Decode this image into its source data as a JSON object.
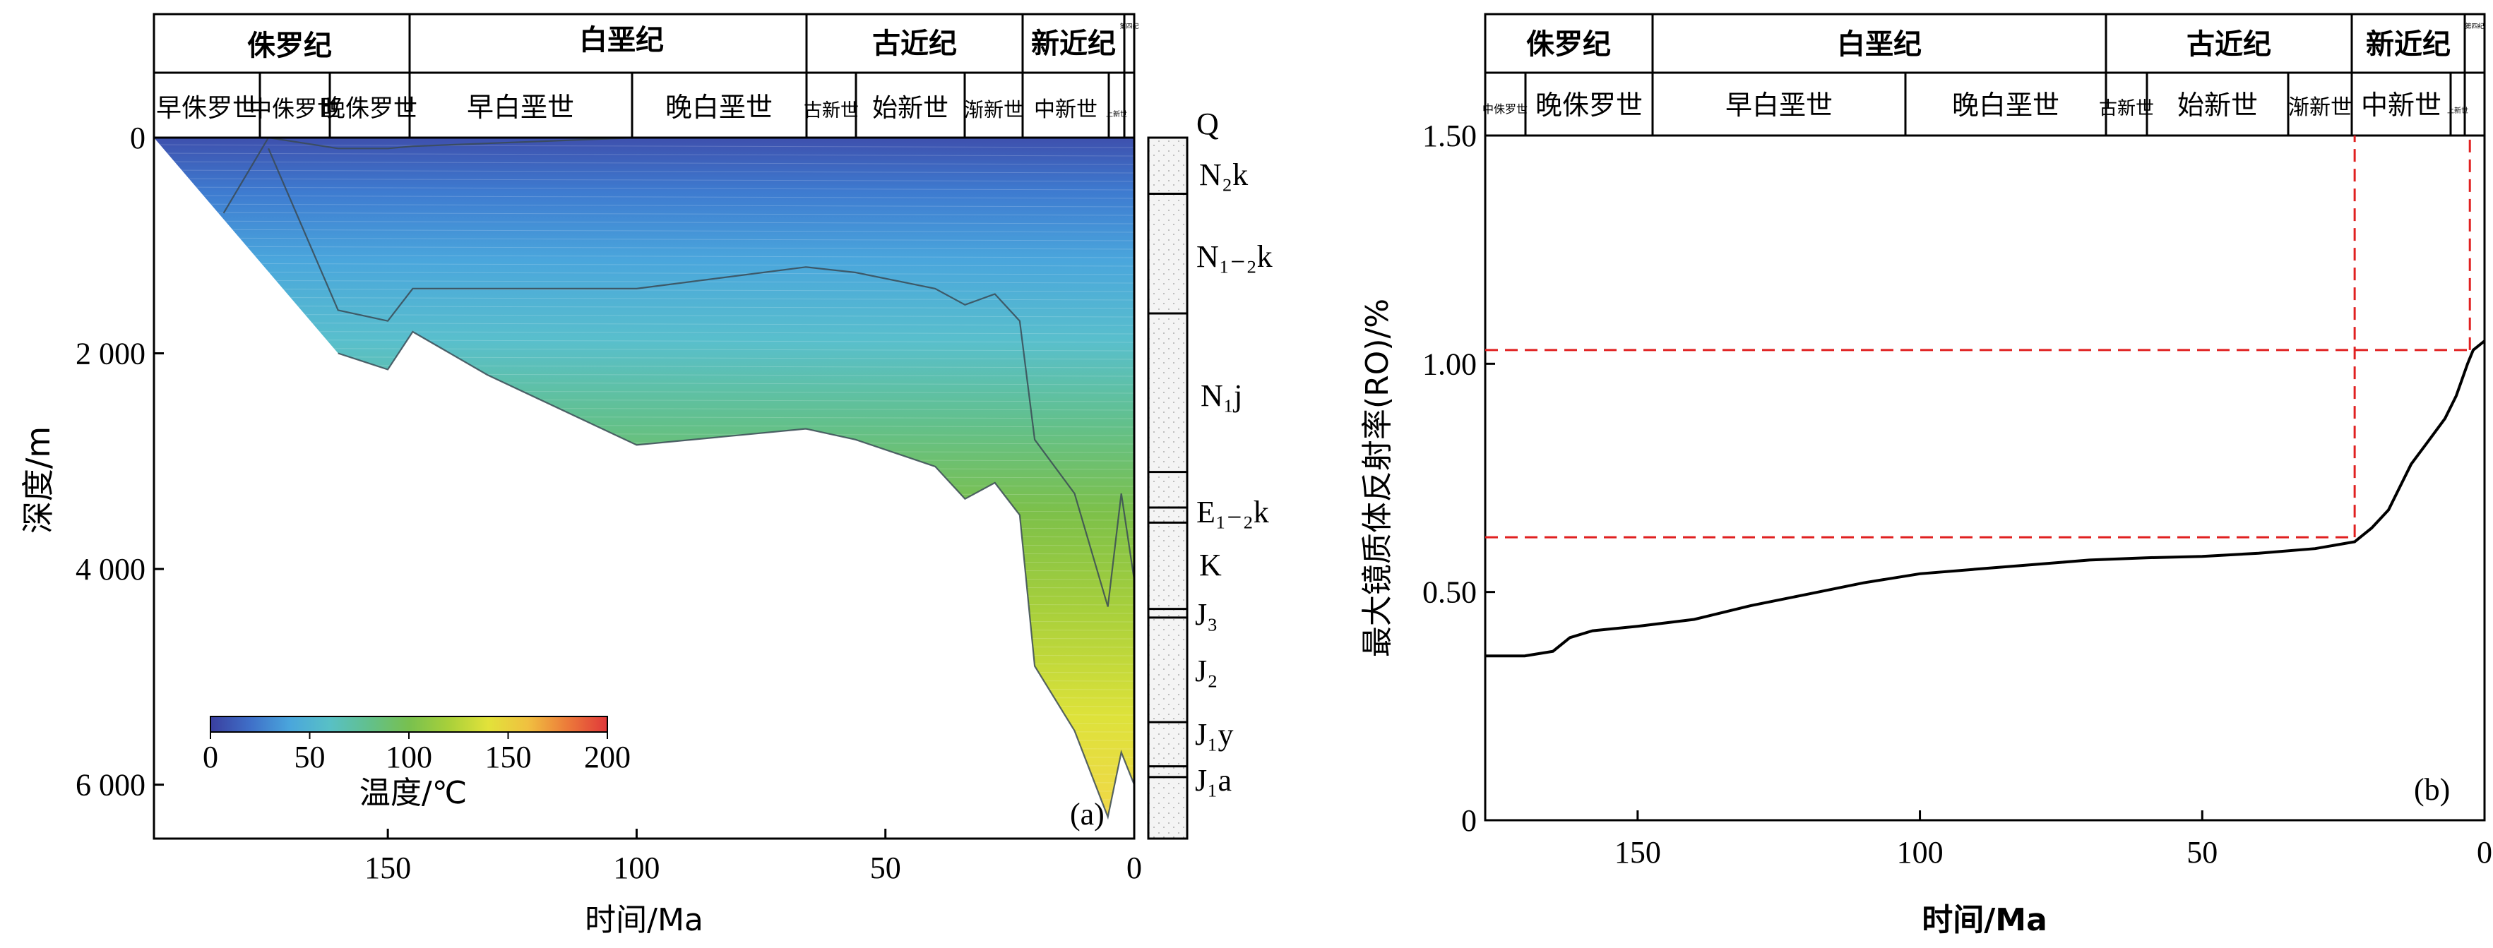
{
  "chart_data": [
    {
      "type": "area",
      "panel_label": "(a)",
      "xlabel": "时间/Ma",
      "ylabel": "深度/m",
      "xlim": [
        197,
        0
      ],
      "ylim": [
        0,
        6500
      ],
      "xticks": [
        "150",
        "100",
        "50",
        "0"
      ],
      "yticks": [
        "0",
        "2 000",
        "4 000",
        "6 000"
      ],
      "stratigraphy": {
        "periods": [
          "侏罗纪",
          "白垩纪",
          "古近纪",
          "新近纪",
          "第四纪"
        ],
        "epochs": [
          "早侏罗世",
          "中侏罗世",
          "晚侏罗世",
          "早白垩世",
          "晚白垩世",
          "古新世",
          "始新世",
          "渐新世",
          "中新世",
          "上新世"
        ]
      },
      "colorbar": {
        "title": "温度/℃",
        "ticks": [
          "0",
          "50",
          "100",
          "150",
          "200"
        ],
        "range": [
          0,
          200
        ],
        "colors": [
          "#3a3f9f",
          "#3f6fc8",
          "#4aa6dc",
          "#58c0c6",
          "#62c08c",
          "#78c04f",
          "#a8d03a",
          "#e2e23a",
          "#f0c040",
          "#ec7a3a",
          "#e0383a"
        ]
      },
      "formations": [
        "Q",
        "N₂k",
        "N₁₋₂k",
        "N₁j",
        "E₁₋₂k",
        "K",
        "J₃",
        "J₂",
        "J₁y",
        "J₁a"
      ],
      "formation_boundaries_m": [
        0,
        520,
        1630,
        3100,
        3430,
        3570,
        4370,
        4450,
        5420,
        5830,
        5930,
        6500
      ],
      "series": [
        {
          "x": [
            197,
            183,
            174,
            160,
            150,
            145,
            100,
            66,
            56,
            40,
            34,
            28,
            23,
            20,
            12,
            5.3,
            2.6,
            0
          ],
          "values": [
            0,
            0,
            0,
            0,
            0,
            0,
            0,
            0,
            0,
            0,
            0,
            0,
            0,
            0,
            0,
            0,
            0,
            0
          ]
        },
        {
          "x": [
            197,
            183,
            174,
            160,
            150,
            145,
            100,
            66,
            56,
            40,
            34,
            28,
            23,
            20,
            12,
            5.3,
            2.6,
            0
          ],
          "values": [
            null,
            700,
            0,
            100,
            100,
            80,
            0,
            0,
            0,
            0,
            0,
            0,
            0,
            0,
            0,
            0,
            0,
            0
          ]
        },
        {
          "x": [
            174,
            160,
            150,
            145,
            100,
            66,
            56,
            40,
            34,
            28,
            23,
            20,
            12,
            5.3,
            2.6,
            0
          ],
          "values": [
            100,
            1600,
            1700,
            1400,
            1400,
            1200,
            1250,
            1400,
            1550,
            1450,
            1700,
            2800,
            3300,
            4350,
            3300,
            4100
          ]
        },
        {
          "x": [
            160,
            150,
            145,
            130,
            100,
            66,
            56,
            40,
            34,
            28,
            23,
            20,
            12,
            5.3,
            2.6,
            0
          ],
          "values": [
            2000,
            2150,
            1800,
            2200,
            2850,
            2700,
            2800,
            3050,
            3350,
            3200,
            3500,
            4900,
            5500,
            6300,
            5700,
            6000
          ]
        }
      ]
    },
    {
      "type": "line",
      "panel_label": "(b)",
      "xlabel": "时间/Ma",
      "ylabel": "最大镜质体反射率(RO)/%",
      "xlim": [
        177,
        0
      ],
      "ylim": [
        0,
        1.5
      ],
      "xticks": [
        "150",
        "100",
        "50",
        "0"
      ],
      "yticks": [
        "0",
        "0.50",
        "1.00",
        "1.50"
      ],
      "stratigraphy": {
        "periods": [
          "侏罗纪",
          "白垩纪",
          "古近纪",
          "新近纪",
          "第四纪"
        ],
        "epochs": [
          "中侏罗世",
          "晚侏罗世",
          "早白垩世",
          "晚白垩世",
          "古新世",
          "始新世",
          "渐新世",
          "中新世",
          "上新世"
        ]
      },
      "series": [
        {
          "x": [
            177,
            170,
            165,
            162,
            158,
            150,
            140,
            130,
            120,
            110,
            100,
            90,
            80,
            70,
            60,
            50,
            40,
            30,
            23,
            20,
            17,
            15,
            13,
            10,
            7,
            5,
            3,
            2,
            0
          ],
          "values": [
            0.36,
            0.36,
            0.37,
            0.4,
            0.415,
            0.425,
            0.44,
            0.47,
            0.495,
            0.52,
            0.54,
            0.55,
            0.56,
            0.57,
            0.575,
            0.578,
            0.585,
            0.595,
            0.61,
            0.64,
            0.68,
            0.73,
            0.78,
            0.83,
            0.88,
            0.93,
            1.0,
            1.03,
            1.05
          ]
        }
      ],
      "reference_lines": {
        "y": [
          0.62,
          1.03
        ],
        "x": [
          23,
          2.6
        ]
      }
    }
  ]
}
